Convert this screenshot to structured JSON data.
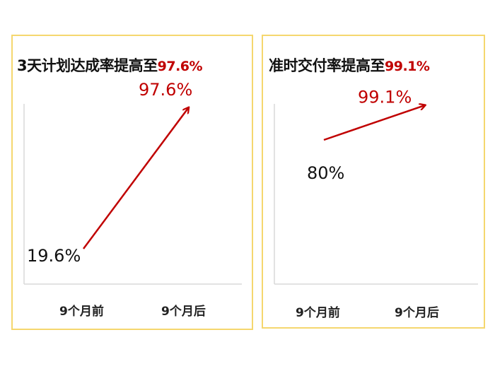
{
  "charts": [
    {
      "title": "3天计划达成率提高至",
      "title_highlight": "97.6%",
      "chart_data": {
        "type": "line",
        "categories": [
          "9个月前",
          "9个月后"
        ],
        "values": [
          19.6,
          97.6
        ],
        "labels": [
          "19.6%",
          "97.6%"
        ],
        "ylim": [
          0,
          100
        ]
      }
    },
    {
      "title": "准时交付率提高至",
      "title_highlight": "99.1%",
      "chart_data": {
        "type": "line",
        "categories": [
          "9个月前",
          "9个月后"
        ],
        "values": [
          80,
          99.1
        ],
        "labels": [
          "80%",
          "99.1%"
        ],
        "ylim": [
          0,
          100
        ]
      }
    }
  ],
  "colors": {
    "accent": "#c00000",
    "panel_border": "#f5d76e",
    "axis": "#d9d9d9",
    "text": "#111111"
  }
}
